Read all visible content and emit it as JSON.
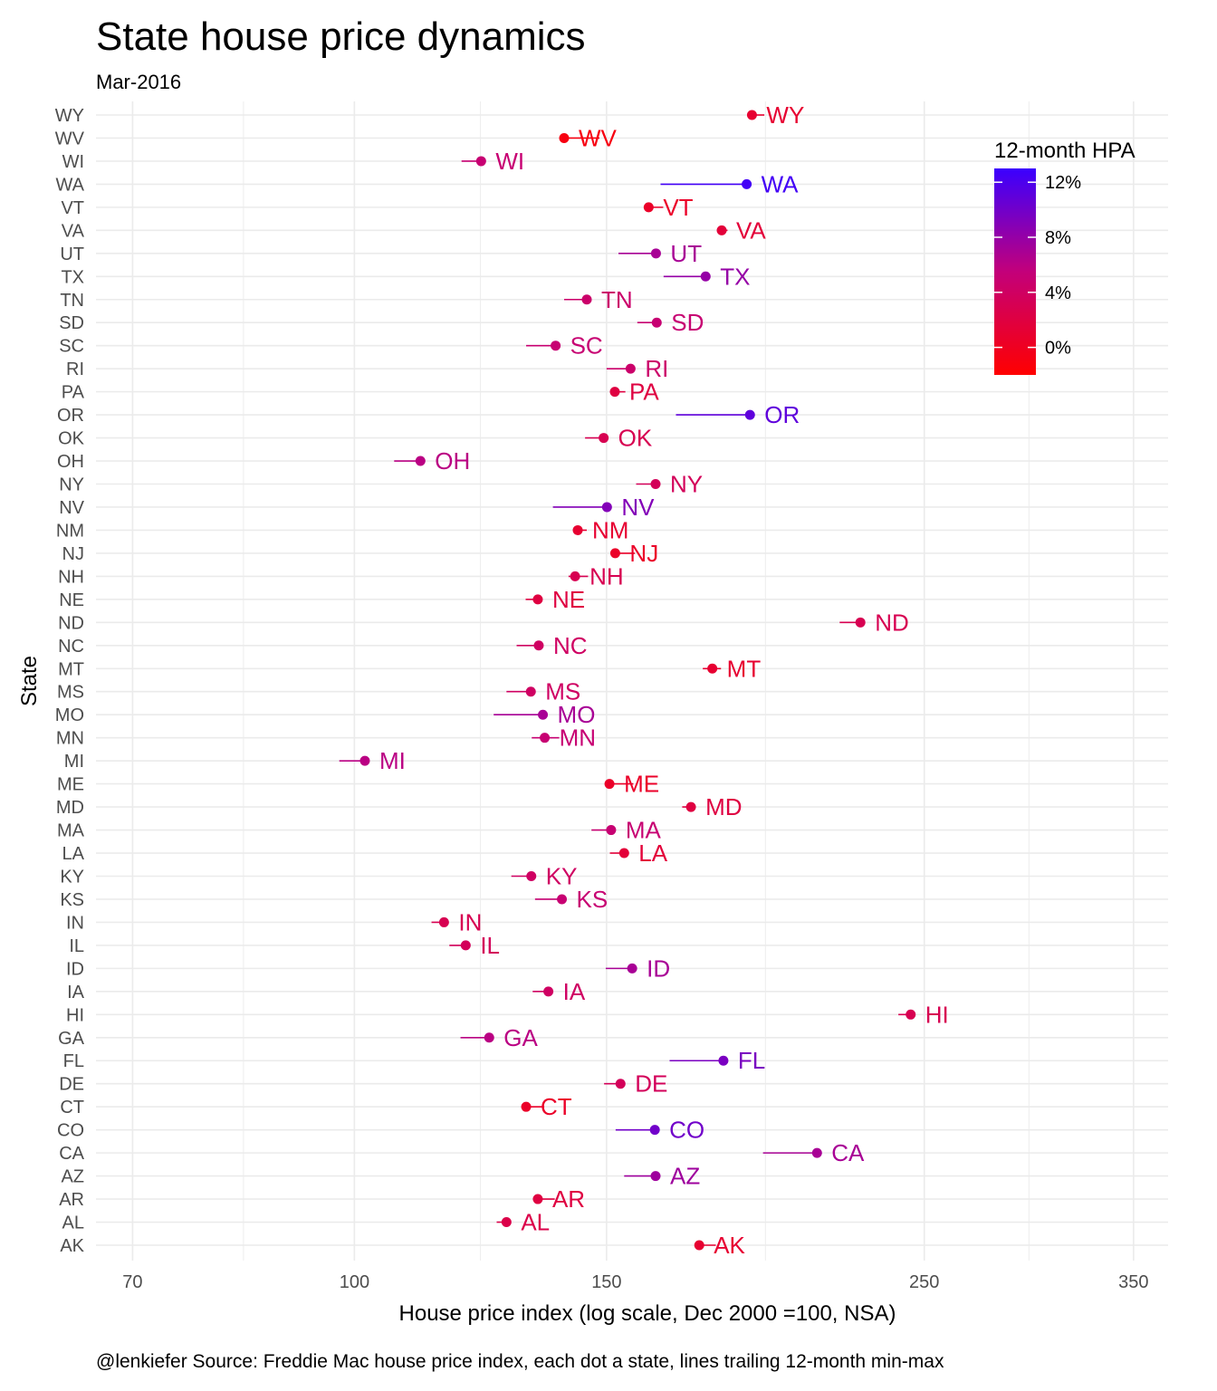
{
  "colors": {
    "low": "#FF0000",
    "high": "#0000FF",
    "grid": "#EBEBEB",
    "tick_text": "#4D4D4D"
  },
  "chart_data": {
    "type": "scatter",
    "title": "State house price dynamics",
    "subtitle": "Mar-2016",
    "xlabel": "House price index (log scale, Dec 2000 =100, NSA)",
    "ylabel": "State",
    "caption": "@lenkiefer Source: Freddie Mac house price index, each dot a state, lines trailing 12-month min-max",
    "x_scale": "log",
    "xlim": [
      66,
      370
    ],
    "x_ticks": [
      70,
      100,
      150,
      250,
      350
    ],
    "x_tick_labels": [
      "70",
      "100",
      "150",
      "250",
      "350"
    ],
    "grid": true,
    "legend": {
      "title": "12-month HPA",
      "placement": "top-right",
      "range": [
        -2,
        13
      ],
      "ticks": [
        0,
        4,
        8,
        12
      ],
      "tick_labels": [
        "0%",
        "4%",
        "8%",
        "12%"
      ]
    },
    "states": [
      "AK",
      "AL",
      "AR",
      "AZ",
      "CA",
      "CO",
      "CT",
      "DE",
      "FL",
      "GA",
      "HI",
      "IA",
      "ID",
      "IL",
      "IN",
      "KS",
      "KY",
      "LA",
      "MA",
      "MD",
      "ME",
      "MI",
      "MN",
      "MO",
      "MS",
      "MT",
      "NC",
      "ND",
      "NE",
      "NH",
      "NJ",
      "NM",
      "NV",
      "NY",
      "OH",
      "OK",
      "OR",
      "PA",
      "RI",
      "SC",
      "SD",
      "TN",
      "TX",
      "UT",
      "VA",
      "VT",
      "WA",
      "WI",
      "WV",
      "WY"
    ],
    "series": [
      {
        "state": "AK",
        "value": 174.1,
        "min": 174.1,
        "max": 178.8,
        "hpa": 1.0
      },
      {
        "state": "AL",
        "value": 127.7,
        "min": 125.7,
        "max": 127.7,
        "hpa": 2.5
      },
      {
        "state": "AR",
        "value": 134.3,
        "min": 134.3,
        "max": 138.0,
        "hpa": 2.0
      },
      {
        "state": "AZ",
        "value": 162.3,
        "min": 154.3,
        "max": 162.3,
        "hpa": 7.5
      },
      {
        "state": "CA",
        "value": 210.4,
        "min": 192.9,
        "max": 210.4,
        "hpa": 7.0
      },
      {
        "state": "CO",
        "value": 162.1,
        "min": 152.2,
        "max": 162.1,
        "hpa": 10.0
      },
      {
        "state": "CT",
        "value": 131.8,
        "min": 131.8,
        "max": 135.7,
        "hpa": 0.5
      },
      {
        "state": "DE",
        "value": 153.4,
        "min": 149.4,
        "max": 153.4,
        "hpa": 3.5
      },
      {
        "state": "FL",
        "value": 181.0,
        "min": 166.0,
        "max": 181.0,
        "hpa": 9.5
      },
      {
        "state": "GA",
        "value": 124.2,
        "min": 118.6,
        "max": 124.2,
        "hpa": 6.0
      },
      {
        "state": "HI",
        "value": 244.6,
        "min": 239.8,
        "max": 244.6,
        "hpa": 3.0
      },
      {
        "state": "IA",
        "value": 136.6,
        "min": 133.2,
        "max": 136.6,
        "hpa": 4.0
      },
      {
        "state": "ID",
        "value": 156.3,
        "min": 149.8,
        "max": 156.3,
        "hpa": 7.0
      },
      {
        "state": "IL",
        "value": 119.6,
        "min": 116.5,
        "max": 119.6,
        "hpa": 3.5
      },
      {
        "state": "IN",
        "value": 115.5,
        "min": 113.2,
        "max": 115.5,
        "hpa": 3.0
      },
      {
        "state": "KS",
        "value": 139.6,
        "min": 133.7,
        "max": 139.6,
        "hpa": 5.0
      },
      {
        "state": "KY",
        "value": 132.9,
        "min": 128.7,
        "max": 132.9,
        "hpa": 4.0
      },
      {
        "state": "LA",
        "value": 154.3,
        "min": 150.8,
        "max": 154.3,
        "hpa": 1.5
      },
      {
        "state": "MA",
        "value": 151.1,
        "min": 146.4,
        "max": 151.1,
        "hpa": 5.0
      },
      {
        "state": "MD",
        "value": 171.8,
        "min": 169.4,
        "max": 171.8,
        "hpa": 2.0
      },
      {
        "state": "ME",
        "value": 150.7,
        "min": 150.7,
        "max": 156.6,
        "hpa": 0.5
      },
      {
        "state": "MI",
        "value": 101.7,
        "min": 97.6,
        "max": 101.7,
        "hpa": 6.0
      },
      {
        "state": "MN",
        "value": 135.8,
        "min": 133.0,
        "max": 139.0,
        "hpa": 5.0
      },
      {
        "state": "MO",
        "value": 135.4,
        "min": 125.1,
        "max": 135.4,
        "hpa": 7.0
      },
      {
        "state": "MS",
        "value": 132.8,
        "min": 127.7,
        "max": 132.8,
        "hpa": 4.0
      },
      {
        "state": "MT",
        "value": 177.8,
        "min": 175.1,
        "max": 180.3,
        "hpa": 1.0
      },
      {
        "state": "NC",
        "value": 134.5,
        "min": 129.8,
        "max": 134.5,
        "hpa": 4.0
      },
      {
        "state": "ND",
        "value": 225.6,
        "min": 218.2,
        "max": 225.6,
        "hpa": 3.0
      },
      {
        "state": "NE",
        "value": 134.3,
        "min": 131.7,
        "max": 134.3,
        "hpa": 2.0
      },
      {
        "state": "NH",
        "value": 142.6,
        "min": 141.1,
        "max": 145.6,
        "hpa": 3.0
      },
      {
        "state": "NJ",
        "value": 152.1,
        "min": 152.1,
        "max": 157.0,
        "hpa": 0.5
      },
      {
        "state": "NM",
        "value": 143.2,
        "min": 143.2,
        "max": 145.3,
        "hpa": 1.0
      },
      {
        "state": "NV",
        "value": 150.1,
        "min": 137.6,
        "max": 150.1,
        "hpa": 9.0
      },
      {
        "state": "NY",
        "value": 162.3,
        "min": 157.3,
        "max": 162.3,
        "hpa": 3.5
      },
      {
        "state": "OH",
        "value": 111.2,
        "min": 106.6,
        "max": 111.2,
        "hpa": 6.0
      },
      {
        "state": "OK",
        "value": 149.3,
        "min": 144.9,
        "max": 149.3,
        "hpa": 3.0
      },
      {
        "state": "OR",
        "value": 188.9,
        "min": 167.7,
        "max": 188.9,
        "hpa": 11.0
      },
      {
        "state": "PA",
        "value": 152.0,
        "min": 152.0,
        "max": 154.6,
        "hpa": 2.0
      },
      {
        "state": "RI",
        "value": 155.9,
        "min": 150.0,
        "max": 155.9,
        "hpa": 4.5
      },
      {
        "state": "SC",
        "value": 138.2,
        "min": 131.8,
        "max": 138.2,
        "hpa": 5.0
      },
      {
        "state": "SD",
        "value": 162.6,
        "min": 157.6,
        "max": 162.6,
        "hpa": 5.0
      },
      {
        "state": "TN",
        "value": 145.3,
        "min": 140.1,
        "max": 145.3,
        "hpa": 4.5
      },
      {
        "state": "TX",
        "value": 175.9,
        "min": 164.4,
        "max": 175.9,
        "hpa": 8.0
      },
      {
        "state": "UT",
        "value": 162.4,
        "min": 152.9,
        "max": 162.4,
        "hpa": 7.0
      },
      {
        "state": "VA",
        "value": 180.5,
        "min": 180.5,
        "max": 182.2,
        "hpa": 1.5
      },
      {
        "state": "VT",
        "value": 160.5,
        "min": 160.5,
        "max": 164.3,
        "hpa": 0.5
      },
      {
        "state": "WA",
        "value": 187.9,
        "min": 163.6,
        "max": 187.9,
        "hpa": 12.5
      },
      {
        "state": "WI",
        "value": 122.6,
        "min": 118.8,
        "max": 122.6,
        "hpa": 5.0
      },
      {
        "state": "WV",
        "value": 140.1,
        "min": 140.1,
        "max": 148.3,
        "hpa": -1.0
      },
      {
        "state": "WY",
        "value": 189.5,
        "min": 189.5,
        "max": 193.3,
        "hpa": 1.0
      }
    ]
  }
}
